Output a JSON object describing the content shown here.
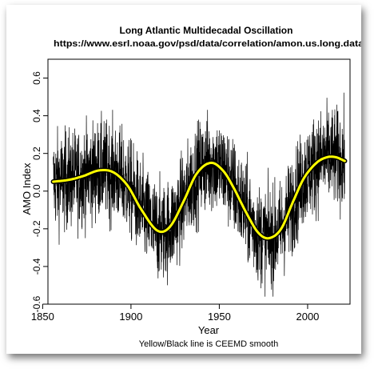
{
  "chart_data": {
    "type": "line",
    "title": "Long Atlantic Multidecadal Oscillation",
    "subtitle": "https://www.esrl.noaa.gov/psd/data/correlation/amon.us.long.data",
    "xlabel": "Year",
    "ylabel": "AMO Index",
    "caption": "Yellow/Black line is CEEMD smooth",
    "xlim": [
      1853,
      2024
    ],
    "ylim": [
      -0.6,
      0.7
    ],
    "x_ticks": [
      1850,
      1900,
      1950,
      2000
    ],
    "y_ticks": [
      0.6,
      0.4,
      0.2,
      0.0,
      -0.2,
      -0.4,
      -0.6
    ],
    "grid": false,
    "series": [
      {
        "kind": "monthly",
        "color": "#000000",
        "x_start": 1856,
        "x_end": 2021,
        "range_min": -0.56,
        "range_max": 0.65
      },
      {
        "kind": "smooth",
        "color": "#ffff00",
        "outline_color": "#000000",
        "x": [
          1856,
          1865,
          1873,
          1882,
          1890,
          1898,
          1906,
          1915,
          1922,
          1930,
          1937,
          1945,
          1952,
          1958,
          1965,
          1972,
          1978,
          1985,
          1992,
          1998,
          2005,
          2011,
          2016,
          2021
        ],
        "y": [
          0.05,
          0.06,
          0.08,
          0.11,
          0.1,
          0.03,
          -0.1,
          -0.21,
          -0.19,
          -0.05,
          0.09,
          0.15,
          0.11,
          0.02,
          -0.11,
          -0.22,
          -0.25,
          -0.2,
          -0.05,
          0.07,
          0.15,
          0.18,
          0.18,
          0.16
        ]
      }
    ]
  }
}
